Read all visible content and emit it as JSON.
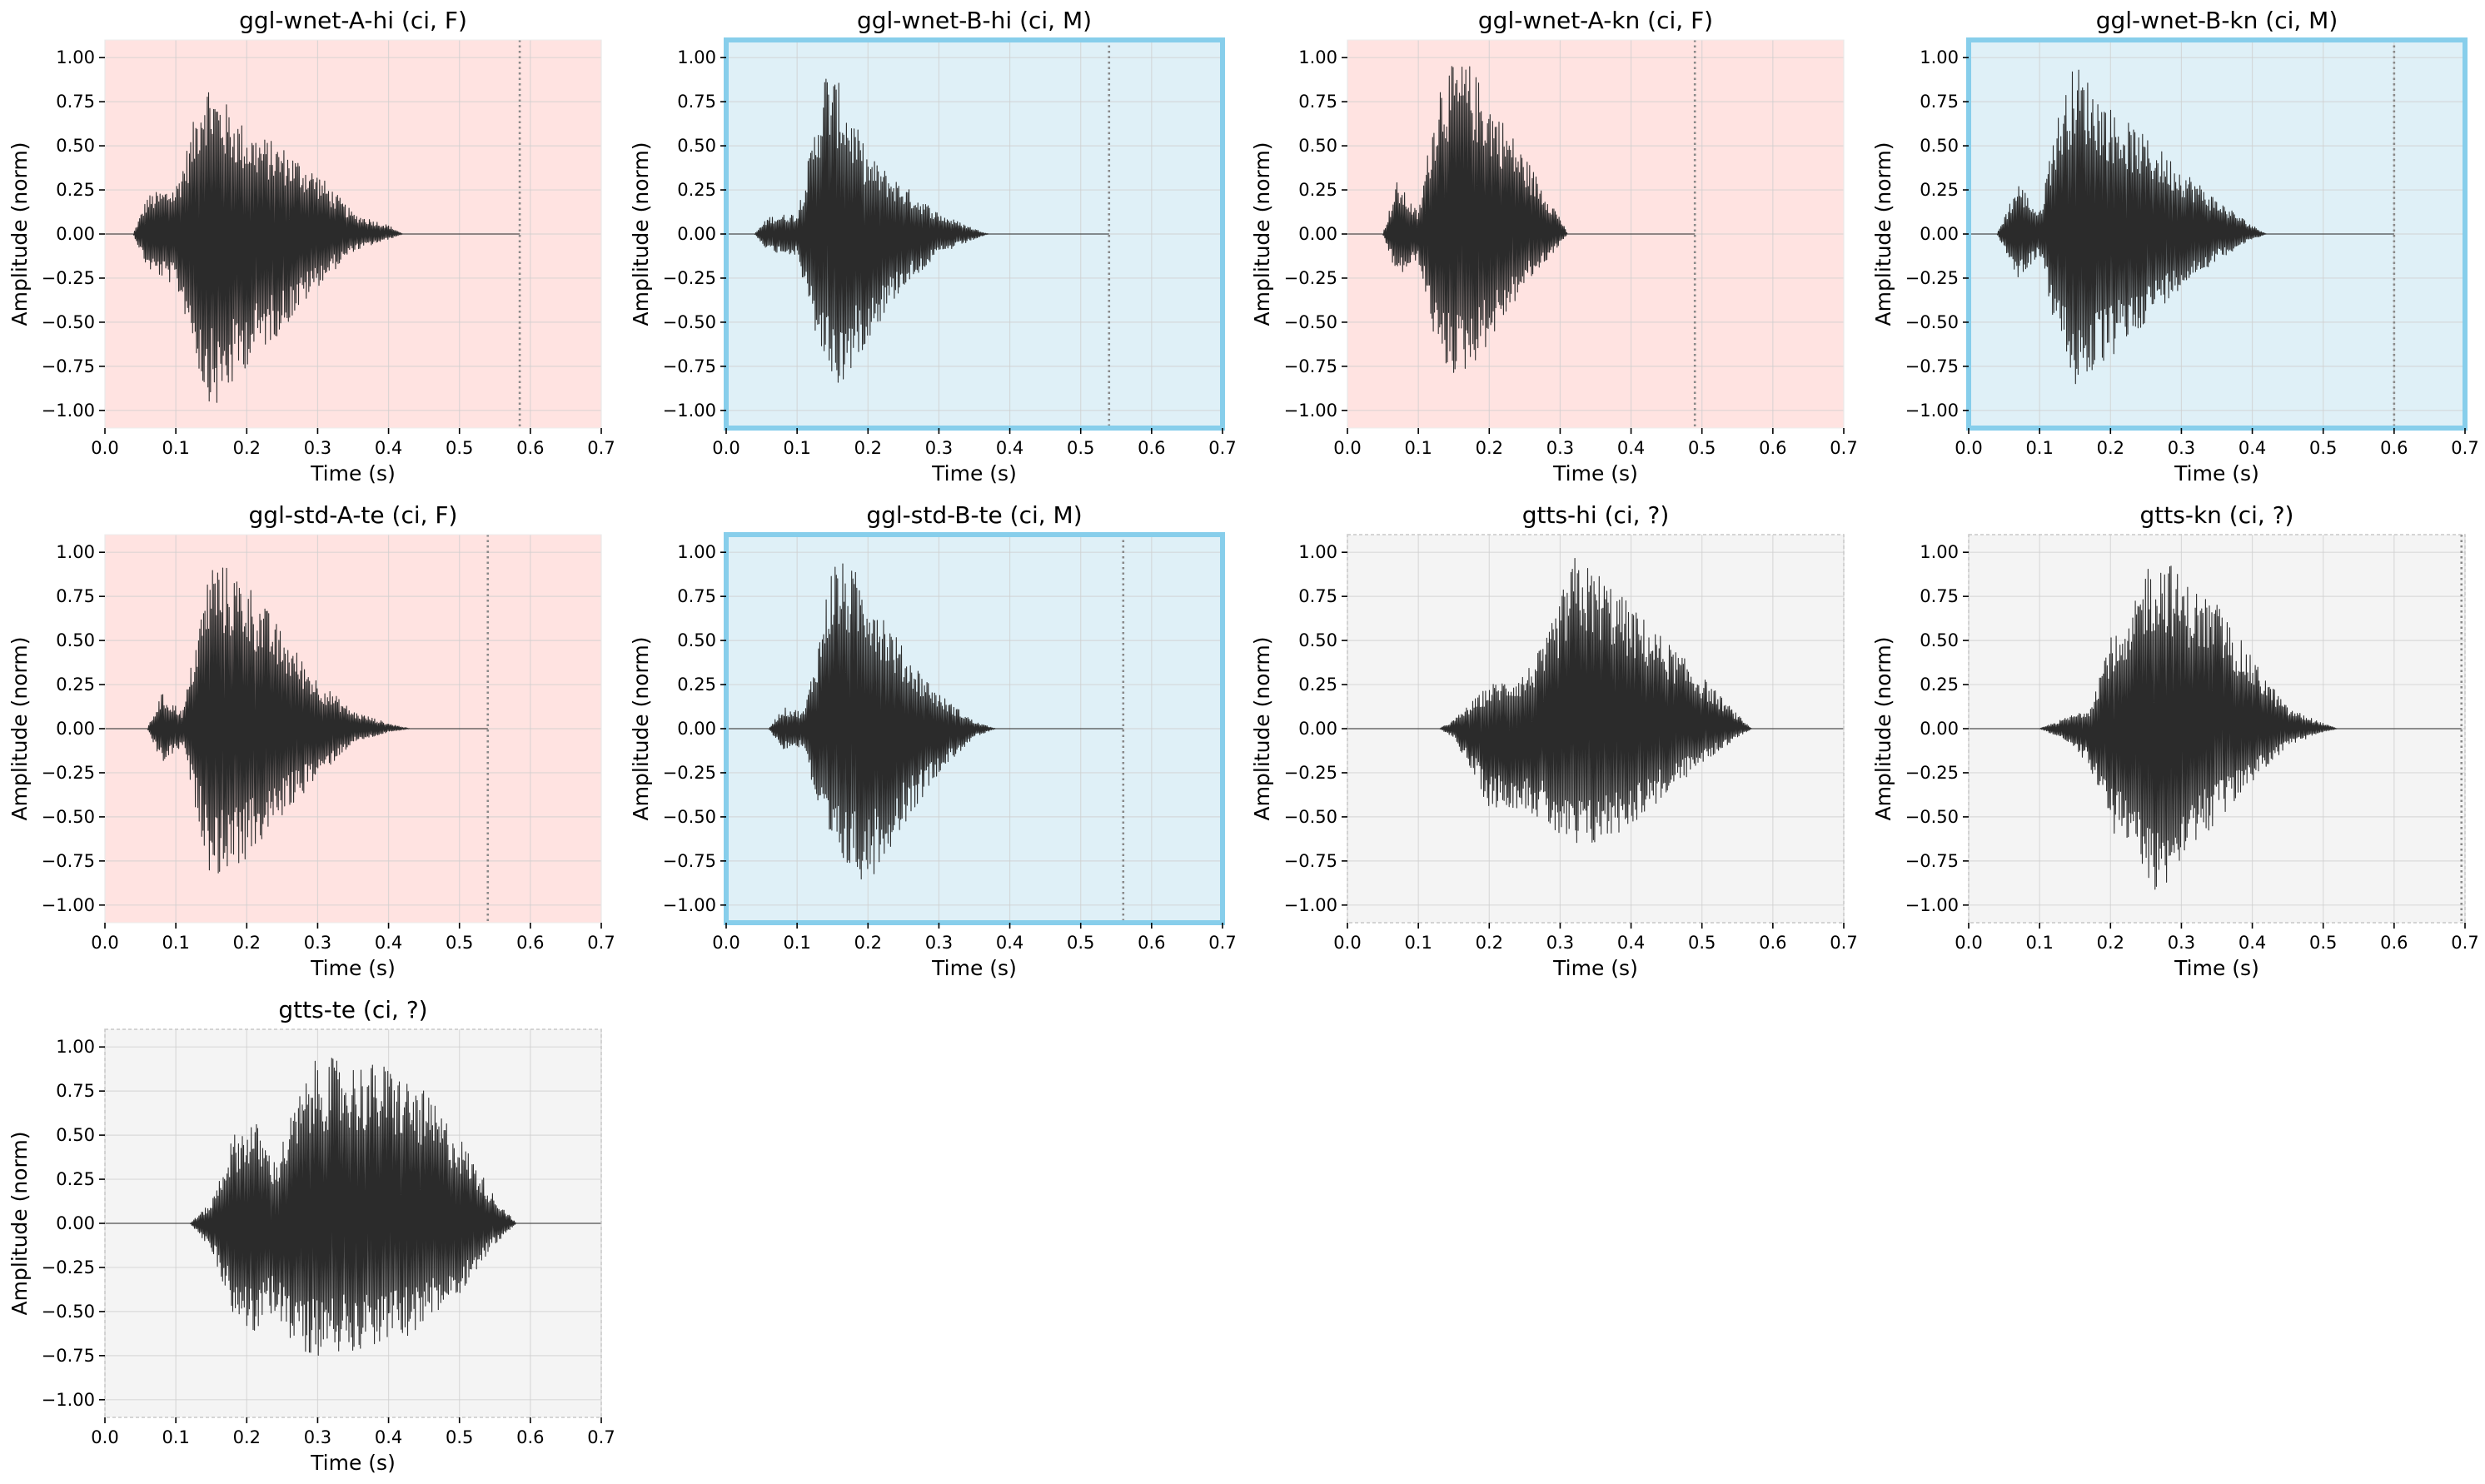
{
  "figure": {
    "xlabel": "Time (s)",
    "ylabel": "Amplitude (norm)",
    "xticks": [
      "0.0",
      "0.1",
      "0.2",
      "0.3",
      "0.4",
      "0.5",
      "0.6",
      "0.7"
    ],
    "yticks": [
      "1.00",
      "0.75",
      "0.50",
      "0.25",
      "0.00",
      "−0.25",
      "−0.50",
      "−0.75",
      "−1.00"
    ],
    "colors": {
      "F": "#ffe3e1",
      "M": "#dff0f7",
      "unknown": "#f4f4f4",
      "highlight_border": "#87ceeb",
      "waveform": "#2b2b2b",
      "end_marker": "#888888"
    }
  },
  "chart_data": [
    {
      "type": "line",
      "title": "ggl-wnet-A-hi (ci, F)",
      "group": "F",
      "highlighted": false,
      "xlim": [
        0,
        0.7
      ],
      "ylim": [
        -1.1,
        1.1
      ],
      "grid": true,
      "xlabel": "Time (s)",
      "ylabel": "Amplitude (norm)",
      "end_marker_s": 0.585,
      "envelope": {
        "t": [
          0.04,
          0.06,
          0.1,
          0.12,
          0.14,
          0.16,
          0.2,
          0.25,
          0.3,
          0.35,
          0.4,
          0.42
        ],
        "upper": [
          0,
          0.22,
          0.28,
          0.55,
          0.92,
          0.8,
          0.6,
          0.5,
          0.35,
          0.12,
          0.05,
          0
        ],
        "lower": [
          0,
          -0.2,
          -0.3,
          -0.55,
          -0.92,
          -1.0,
          -0.75,
          -0.55,
          -0.3,
          -0.1,
          -0.03,
          0
        ]
      }
    },
    {
      "type": "line",
      "title": "ggl-wnet-B-hi (ci, M)",
      "group": "M",
      "highlighted": true,
      "xlim": [
        0,
        0.7
      ],
      "ylim": [
        -1.1,
        1.1
      ],
      "grid": true,
      "xlabel": "Time (s)",
      "ylabel": "Amplitude (norm)",
      "end_marker_s": 0.54,
      "envelope": {
        "t": [
          0.04,
          0.06,
          0.1,
          0.12,
          0.14,
          0.16,
          0.2,
          0.25,
          0.3,
          0.35,
          0.37
        ],
        "upper": [
          0,
          0.1,
          0.12,
          0.5,
          0.95,
          0.85,
          0.45,
          0.28,
          0.12,
          0.03,
          0
        ],
        "lower": [
          0,
          -0.1,
          -0.12,
          -0.5,
          -0.75,
          -0.9,
          -0.6,
          -0.3,
          -0.12,
          -0.03,
          0
        ]
      }
    },
    {
      "type": "line",
      "title": "ggl-wnet-A-kn (ci, F)",
      "group": "F",
      "highlighted": false,
      "xlim": [
        0,
        0.7
      ],
      "ylim": [
        -1.1,
        1.1
      ],
      "grid": true,
      "xlabel": "Time (s)",
      "ylabel": "Amplitude (norm)",
      "end_marker_s": 0.49,
      "envelope": {
        "t": [
          0.05,
          0.07,
          0.1,
          0.13,
          0.15,
          0.17,
          0.2,
          0.25,
          0.3,
          0.31
        ],
        "upper": [
          0,
          0.3,
          0.12,
          0.9,
          0.96,
          0.98,
          0.78,
          0.45,
          0.1,
          0
        ],
        "lower": [
          0,
          -0.25,
          -0.15,
          -0.75,
          -0.8,
          -0.78,
          -0.62,
          -0.3,
          -0.06,
          0
        ]
      }
    },
    {
      "type": "line",
      "title": "ggl-wnet-B-kn (ci, M)",
      "group": "M",
      "highlighted": true,
      "xlim": [
        0,
        0.7
      ],
      "ylim": [
        -1.1,
        1.1
      ],
      "grid": true,
      "xlabel": "Time (s)",
      "ylabel": "Amplitude (norm)",
      "end_marker_s": 0.6,
      "envelope": {
        "t": [
          0.04,
          0.07,
          0.1,
          0.12,
          0.15,
          0.2,
          0.25,
          0.3,
          0.35,
          0.4,
          0.42
        ],
        "upper": [
          0,
          0.3,
          0.12,
          0.6,
          0.98,
          0.72,
          0.55,
          0.38,
          0.2,
          0.05,
          0
        ],
        "lower": [
          0,
          -0.25,
          -0.12,
          -0.5,
          -0.88,
          -0.72,
          -0.5,
          -0.3,
          -0.15,
          -0.03,
          0
        ]
      }
    },
    {
      "type": "line",
      "title": "ggl-std-A-te (ci, F)",
      "group": "F",
      "highlighted": false,
      "xlim": [
        0,
        0.7
      ],
      "ylim": [
        -1.1,
        1.1
      ],
      "grid": true,
      "xlabel": "Time (s)",
      "ylabel": "Amplitude (norm)",
      "end_marker_s": 0.54,
      "envelope": {
        "t": [
          0.06,
          0.08,
          0.11,
          0.13,
          0.15,
          0.2,
          0.25,
          0.3,
          0.35,
          0.4,
          0.43
        ],
        "upper": [
          0,
          0.2,
          0.1,
          0.55,
          0.98,
          0.85,
          0.55,
          0.28,
          0.1,
          0.03,
          0
        ],
        "lower": [
          0,
          -0.2,
          -0.1,
          -0.5,
          -0.85,
          -0.75,
          -0.5,
          -0.28,
          -0.08,
          -0.02,
          0
        ]
      }
    },
    {
      "type": "line",
      "title": "ggl-std-B-te (ci, M)",
      "group": "M",
      "highlighted": true,
      "xlim": [
        0,
        0.7
      ],
      "ylim": [
        -1.1,
        1.1
      ],
      "grid": true,
      "xlabel": "Time (s)",
      "ylabel": "Amplitude (norm)",
      "end_marker_s": 0.56,
      "envelope": {
        "t": [
          0.06,
          0.08,
          0.11,
          0.13,
          0.15,
          0.2,
          0.25,
          0.3,
          0.35,
          0.38
        ],
        "upper": [
          0,
          0.12,
          0.1,
          0.5,
          0.98,
          0.85,
          0.45,
          0.2,
          0.04,
          0
        ],
        "lower": [
          0,
          -0.12,
          -0.1,
          -0.5,
          -0.75,
          -0.88,
          -0.55,
          -0.25,
          -0.05,
          0
        ]
      }
    },
    {
      "type": "line",
      "title": "gtts-hi (ci, ?)",
      "group": "unknown",
      "highlighted": false,
      "xlim": [
        0,
        0.7
      ],
      "ylim": [
        -1.1,
        1.1
      ],
      "grid": true,
      "xlabel": "Time (s)",
      "ylabel": "Amplitude (norm)",
      "end_marker_s": null,
      "envelope": {
        "t": [
          0.13,
          0.15,
          0.2,
          0.25,
          0.28,
          0.32,
          0.36,
          0.4,
          0.45,
          0.5,
          0.55,
          0.57
        ],
        "upper": [
          0,
          0.05,
          0.25,
          0.32,
          0.5,
          0.98,
          0.88,
          0.7,
          0.5,
          0.3,
          0.08,
          0
        ],
        "lower": [
          0,
          -0.05,
          -0.45,
          -0.45,
          -0.55,
          -0.72,
          -0.65,
          -0.55,
          -0.38,
          -0.2,
          -0.05,
          0
        ]
      }
    },
    {
      "type": "line",
      "title": "gtts-kn (ci, ?)",
      "group": "unknown",
      "highlighted": false,
      "xlim": [
        0,
        0.7
      ],
      "ylim": [
        -1.1,
        1.1
      ],
      "grid": true,
      "xlabel": "Time (s)",
      "ylabel": "Amplitude (norm)",
      "end_marker_s": 0.695,
      "envelope": {
        "t": [
          0.1,
          0.13,
          0.17,
          0.2,
          0.22,
          0.25,
          0.28,
          0.3,
          0.35,
          0.4,
          0.45,
          0.5,
          0.52
        ],
        "upper": [
          0,
          0.05,
          0.12,
          0.55,
          0.5,
          0.95,
          0.98,
          0.85,
          0.72,
          0.4,
          0.12,
          0.03,
          0
        ],
        "lower": [
          0,
          -0.05,
          -0.2,
          -0.6,
          -0.6,
          -0.9,
          -0.95,
          -0.72,
          -0.55,
          -0.3,
          -0.1,
          -0.02,
          0
        ]
      }
    },
    {
      "type": "line",
      "title": "gtts-te (ci, ?)",
      "group": "unknown",
      "highlighted": false,
      "xlim": [
        0,
        0.7
      ],
      "ylim": [
        -1.1,
        1.1
      ],
      "grid": true,
      "xlabel": "Time (s)",
      "ylabel": "Amplitude (norm)",
      "end_marker_s": null,
      "envelope": {
        "t": [
          0.12,
          0.15,
          0.18,
          0.21,
          0.24,
          0.27,
          0.3,
          0.35,
          0.4,
          0.45,
          0.5,
          0.55,
          0.58
        ],
        "upper": [
          0,
          0.12,
          0.5,
          0.6,
          0.35,
          0.7,
          0.95,
          0.92,
          0.9,
          0.75,
          0.5,
          0.15,
          0
        ],
        "lower": [
          0,
          -0.15,
          -0.5,
          -0.65,
          -0.5,
          -0.72,
          -0.75,
          -0.72,
          -0.68,
          -0.6,
          -0.4,
          -0.12,
          0
        ]
      }
    }
  ]
}
